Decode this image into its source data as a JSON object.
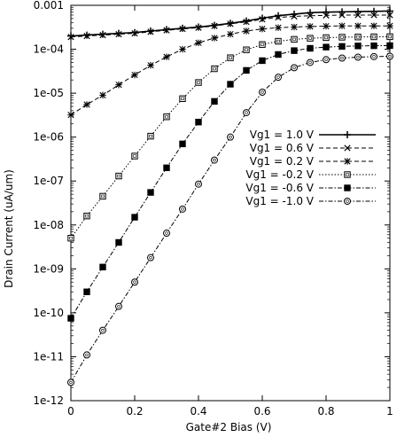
{
  "chart_data": {
    "type": "line",
    "xlabel": "Gate#2 Bias (V)",
    "ylabel": "Drain Current (uA/um)",
    "x_scale": "linear",
    "y_scale": "log",
    "xlim": [
      0,
      1
    ],
    "ylim": [
      1e-12,
      0.001
    ],
    "x_ticks": [
      0,
      0.2,
      0.4,
      0.6,
      0.8,
      1
    ],
    "x_tick_labels": [
      "0",
      "0.2",
      "0.4",
      "0.6",
      "0.8",
      "1"
    ],
    "y_ticks": [
      1e-12,
      1e-11,
      1e-10,
      1e-09,
      1e-08,
      1e-07,
      1e-06,
      1e-05,
      0.0001,
      0.001
    ],
    "y_tick_labels": [
      "1e-12",
      "1e-11",
      "1e-10",
      "1e-09",
      "1e-08",
      "1e-07",
      "1e-06",
      "1e-05",
      "1e-04",
      "0.001"
    ],
    "grid": false,
    "legend_position": "center-right",
    "x": [
      0,
      0.05,
      0.1,
      0.15,
      0.2,
      0.25,
      0.3,
      0.35,
      0.4,
      0.45,
      0.5,
      0.55,
      0.6,
      0.65,
      0.7,
      0.75,
      0.8,
      0.85,
      0.9,
      0.95,
      1.0
    ],
    "series": [
      {
        "name": "Vg1 = 1.0 V",
        "marker": "plus",
        "dash": "solid",
        "values": [
          0.0002,
          0.00021,
          0.00022,
          0.00023,
          0.00024,
          0.00026,
          0.00028,
          0.0003,
          0.00032,
          0.00035,
          0.00039,
          0.00044,
          0.00051,
          0.00058,
          0.00063,
          0.00068,
          0.0007,
          0.00071,
          0.00072,
          0.00073,
          0.00074
        ]
      },
      {
        "name": "Vg1 = 0.6 V",
        "marker": "x",
        "dash": "dashed",
        "values": [
          0.00019,
          0.0002,
          0.00021,
          0.00022,
          0.00023,
          0.00025,
          0.00027,
          0.00029,
          0.00031,
          0.00034,
          0.00038,
          0.00042,
          0.00048,
          0.00053,
          0.00056,
          0.00058,
          0.00059,
          0.0006,
          0.0006,
          0.0006,
          0.0006
        ]
      },
      {
        "name": "Vg1 = 0.2 V",
        "marker": "asterisk",
        "dash": "dashed",
        "values": [
          3.2e-06,
          5.5e-06,
          9e-06,
          1.55e-05,
          2.6e-05,
          4.3e-05,
          6.7e-05,
          0.0001,
          0.00014,
          0.00018,
          0.00022,
          0.00026,
          0.00029,
          0.00031,
          0.00032,
          0.00033,
          0.000335,
          0.00034,
          0.00034,
          0.00034,
          0.00034
        ]
      },
      {
        "name": "Vg1 = -0.2 V",
        "marker": "open-square",
        "dash": "dotted",
        "values": [
          5e-09,
          1.6e-08,
          4.5e-08,
          1.3e-07,
          3.7e-07,
          1.05e-06,
          2.9e-06,
          7.5e-06,
          1.75e-05,
          3.6e-05,
          6.4e-05,
          9.7e-05,
          0.000128,
          0.000152,
          0.000168,
          0.000178,
          0.000184,
          0.000188,
          0.00019,
          0.000192,
          0.000193
        ]
      },
      {
        "name": "Vg1 = -0.6 V",
        "marker": "filled-square",
        "dash": "dash-dot",
        "values": [
          7.5e-11,
          3e-10,
          1.1e-09,
          4e-09,
          1.5e-08,
          5.5e-08,
          2e-07,
          7e-07,
          2.2e-06,
          6.5e-06,
          1.6e-05,
          3.3e-05,
          5.5e-05,
          7.6e-05,
          9.3e-05,
          0.000105,
          0.000112,
          0.000116,
          0.000119,
          0.00012,
          0.000121
        ]
      },
      {
        "name": "Vg1 = -1.0 V",
        "marker": "open-circle",
        "dash": "dash-dot",
        "values": [
          2.6e-12,
          1.1e-11,
          4e-11,
          1.4e-10,
          5e-10,
          1.8e-09,
          6.5e-09,
          2.3e-08,
          8.5e-08,
          3e-07,
          1e-06,
          3.6e-06,
          1.05e-05,
          2.3e-05,
          3.8e-05,
          5e-05,
          5.8e-05,
          6.3e-05,
          6.6e-05,
          6.8e-05,
          6.9e-05
        ]
      }
    ]
  }
}
